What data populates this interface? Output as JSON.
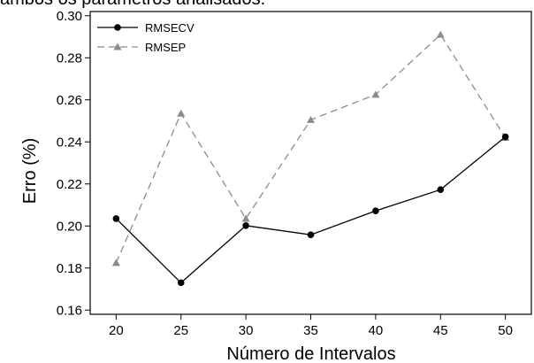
{
  "caption": "ambos os parâmetros analisados.",
  "chart_data": {
    "type": "line",
    "xlabel": "Número de Intervalos",
    "ylabel": "Erro (%)",
    "x": [
      20,
      25,
      30,
      35,
      40,
      45,
      50
    ],
    "x_tick_labels": [
      "20",
      "25",
      "30",
      "35",
      "40",
      "45",
      "50"
    ],
    "y_tick_labels": [
      "0.16",
      "0.18",
      "0.20",
      "0.22",
      "0.24",
      "0.26",
      "0.28",
      "0.30"
    ],
    "xlim": [
      18,
      52
    ],
    "ylim": [
      0.158,
      0.302
    ],
    "grid": false,
    "legend_position": "top-left",
    "series": [
      {
        "name": "RMSECV",
        "values": [
          0.2035,
          0.173,
          0.2002,
          0.1958,
          0.2072,
          0.2173,
          0.2424
        ],
        "color": "#000000",
        "line_style": "solid",
        "marker": "circle"
      },
      {
        "name": "RMSEP",
        "values": [
          0.1825,
          0.2535,
          0.2035,
          0.2505,
          0.2625,
          0.291,
          0.242
        ],
        "color": "#8c8c8c",
        "line_style": "dashed",
        "marker": "triangle"
      }
    ]
  }
}
